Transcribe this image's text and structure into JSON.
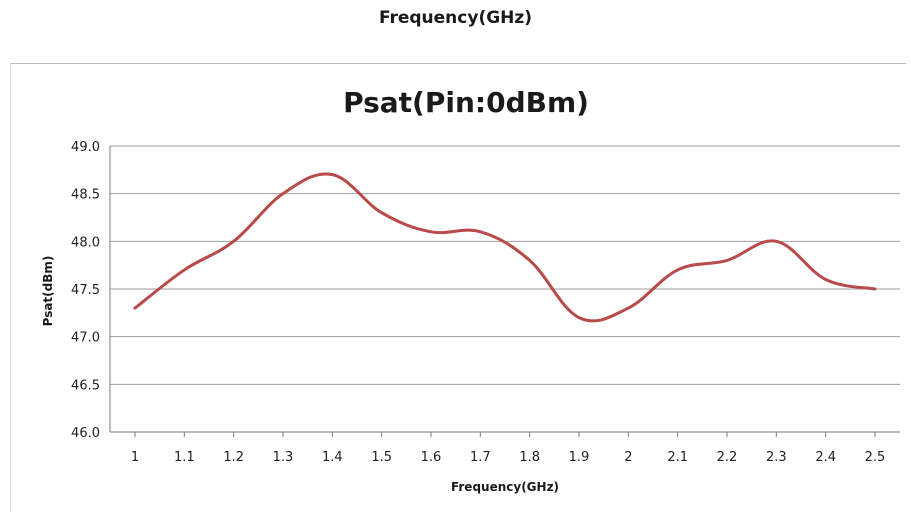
{
  "page": {
    "top_label": "Frequency(GHz)"
  },
  "colors": {
    "series": "#b84a4a",
    "grid": "#9e9e9e",
    "axis": "#7a7a7a"
  },
  "chart_data": {
    "type": "line",
    "title": "Psat(Pin:0dBm)",
    "xlabel": "Frequency(GHz)",
    "ylabel": "Psat(dBm)",
    "categories": [
      "1",
      "1.1",
      "1.2",
      "1.3",
      "1.4",
      "1.5",
      "1.6",
      "1.7",
      "1.8",
      "1.9",
      "2",
      "2.1",
      "2.2",
      "2.3",
      "2.4",
      "2.5"
    ],
    "series": [
      {
        "values": [
          47.3,
          47.7,
          48.0,
          48.5,
          48.7,
          48.3,
          48.1,
          48.1,
          47.8,
          47.2,
          47.3,
          47.7,
          47.8,
          48.0,
          47.6,
          47.5
        ]
      }
    ],
    "ylim": [
      46.0,
      49.0
    ],
    "yticks": [
      "46.0",
      "46.5",
      "47.0",
      "47.5",
      "48.0",
      "48.5",
      "49.0"
    ],
    "grid": true,
    "smooth": true,
    "legend": "none"
  }
}
